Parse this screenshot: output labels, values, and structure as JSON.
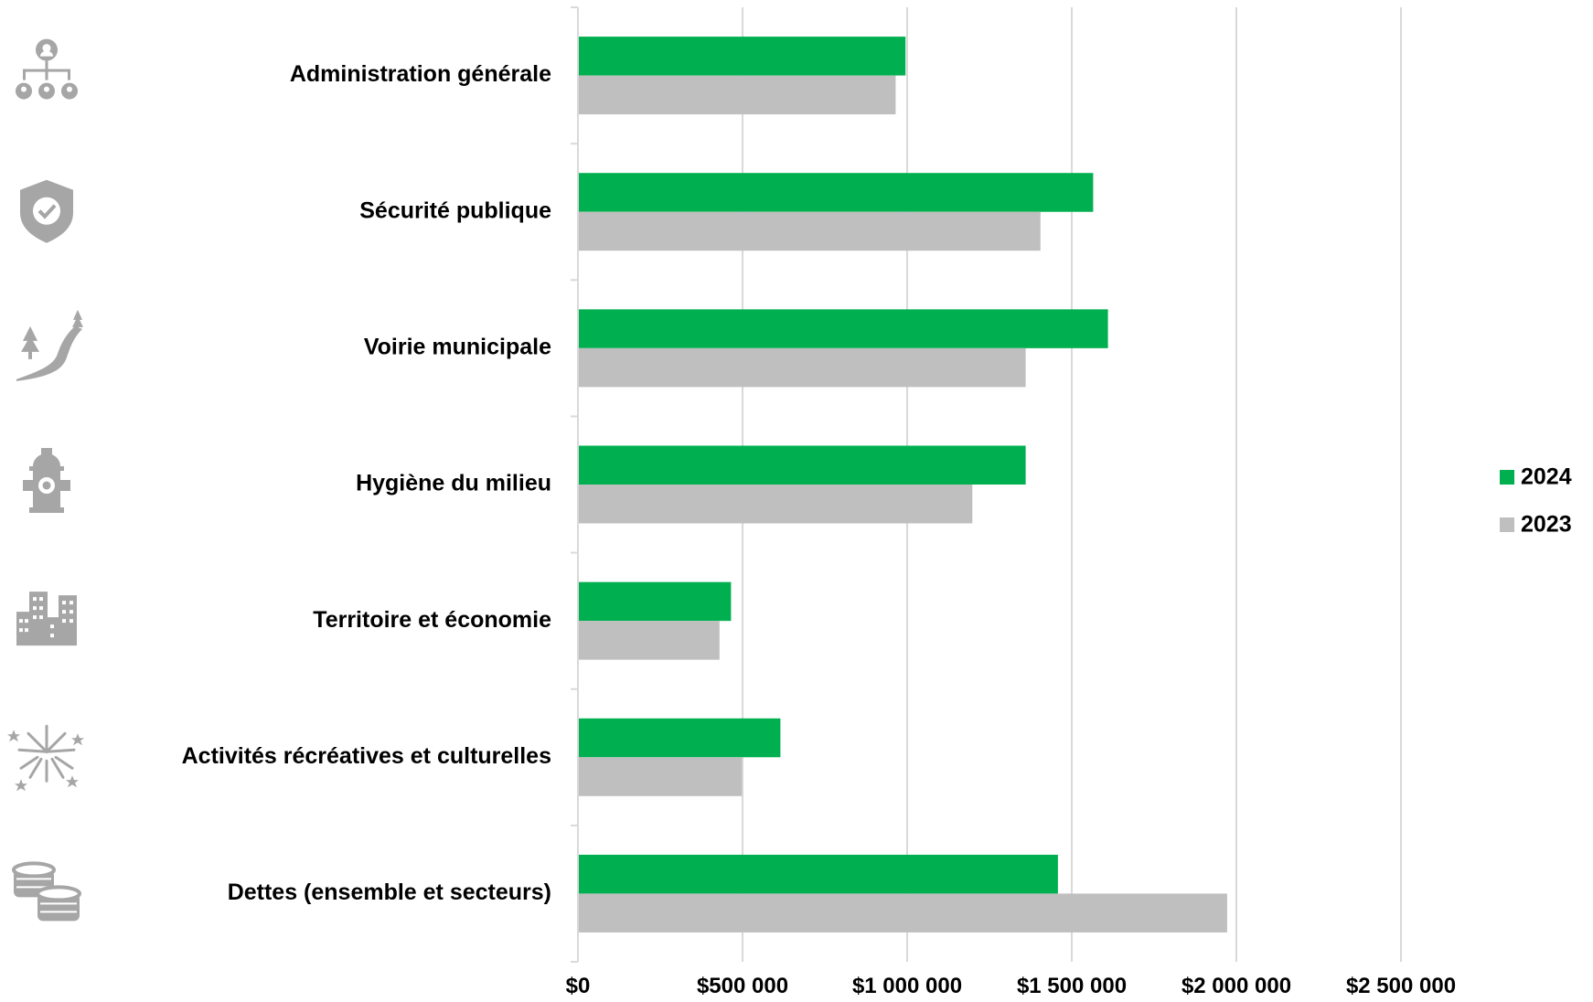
{
  "chart_data": {
    "type": "bar",
    "orientation": "horizontal",
    "categories": [
      "Administration générale",
      "Sécurité publique",
      "Voirie municipale",
      "Hygiène du milieu",
      "Territoire et économie",
      "Activités récréatives et culturelles",
      "Dettes (ensemble et secteurs)"
    ],
    "category_icons": [
      "org-chart-icon",
      "shield-check-icon",
      "road-trees-icon",
      "fire-hydrant-icon",
      "city-buildings-icon",
      "fireworks-icon",
      "coin-stacks-icon"
    ],
    "series": [
      {
        "name": "2024",
        "color": "#00b050",
        "values": [
          995000,
          1565000,
          1610000,
          1360000,
          465000,
          615000,
          1458000
        ]
      },
      {
        "name": "2023",
        "color": "#bfbfbf",
        "values": [
          965000,
          1405000,
          1360000,
          1198000,
          430000,
          498000,
          1972000
        ]
      }
    ],
    "xlim": [
      0,
      2500000
    ],
    "x_ticks": [
      0,
      500000,
      1000000,
      1500000,
      2000000,
      2500000
    ],
    "x_tick_labels": [
      "$0",
      "$500 000",
      "$1 000 000",
      "$1 500 000",
      "$2 000 000",
      "$2 500 000"
    ],
    "grid": true,
    "legend_position": "right",
    "icon_color": "#a6a6a6"
  }
}
